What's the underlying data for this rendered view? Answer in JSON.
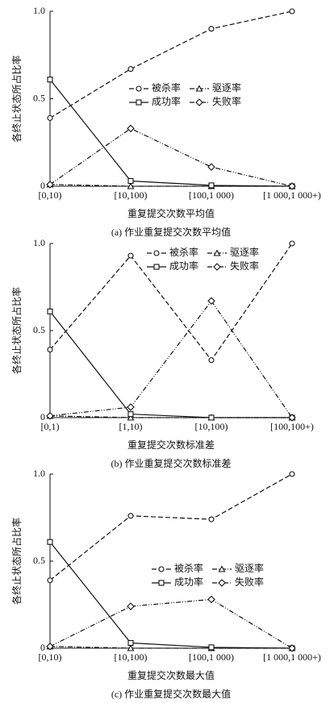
{
  "chart_data": [
    {
      "type": "line",
      "y_label": "各终止状态所占比率",
      "x_label": "重复提交次数平均值",
      "caption": "(a) 作业重复提交次数平均值",
      "categories": [
        "[0,10)",
        "[10,100)",
        "[100,1 000)",
        "[1 000,1 000+)"
      ],
      "ylim": [
        0,
        1
      ],
      "yticks": [
        0,
        0.5,
        {
          "value": 1,
          "label": "1.0"
        }
      ],
      "series": [
        {
          "name": "被杀率",
          "color": "#111111",
          "marker": "circle",
          "dash": "6 3",
          "values": [
            0.39,
            0.67,
            0.9,
            1.0
          ]
        },
        {
          "name": "驱逐率",
          "color": "#111111",
          "marker": "triangle",
          "dash": "6 2 1 2",
          "values": [
            0.01,
            0,
            0,
            0
          ]
        },
        {
          "name": "成功率",
          "color": "#111111",
          "marker": "square",
          "dash": "none",
          "values": [
            0.61,
            0.03,
            0.005,
            0
          ]
        },
        {
          "name": "失败率",
          "color": "#111111",
          "marker": "diamond",
          "dash": "6 2 1 2 1 2",
          "values": [
            0.01,
            0.33,
            0.11,
            0
          ]
        }
      ]
    },
    {
      "type": "line",
      "y_label": "各终止状态所占比率",
      "x_label": "重复提交次数标准差",
      "caption": "(b) 作业重复提交次数标准差",
      "categories": [
        "[0,1)",
        "[1,10)",
        "[10,100)",
        "[100,100+)"
      ],
      "ylim": [
        0,
        1
      ],
      "yticks": [
        0,
        0.5,
        {
          "value": 1,
          "label": "1.0"
        }
      ],
      "series": [
        {
          "name": "被杀率",
          "color": "#111111",
          "marker": "circle",
          "dash": "6 3",
          "values": [
            0.39,
            0.93,
            0.33,
            1.0
          ]
        },
        {
          "name": "驱逐率",
          "color": "#111111",
          "marker": "triangle",
          "dash": "6 2 1 2",
          "values": [
            0.01,
            0,
            0,
            0
          ]
        },
        {
          "name": "成功率",
          "color": "#111111",
          "marker": "square",
          "dash": "none",
          "values": [
            0.61,
            0.02,
            0,
            0
          ]
        },
        {
          "name": "失败率",
          "color": "#111111",
          "marker": "diamond",
          "dash": "6 2 1 2 1 2",
          "values": [
            0.01,
            0.06,
            0.67,
            0
          ]
        }
      ]
    },
    {
      "type": "line",
      "y_label": "各终止状态所占比率",
      "x_label": "重复提交次数最大值",
      "caption": "(c) 作业重复提交次数最大值",
      "categories": [
        "[0,10)",
        "[10,100)",
        "[100,1 000)",
        "[1 000,1 000+)"
      ],
      "ylim": [
        0,
        1
      ],
      "yticks": [
        0,
        0.5,
        {
          "value": 1,
          "label": "1.0"
        }
      ],
      "series": [
        {
          "name": "被杀率",
          "color": "#111111",
          "marker": "circle",
          "dash": "6 3",
          "values": [
            0.39,
            0.76,
            0.74,
            1.0
          ]
        },
        {
          "name": "驱逐率",
          "color": "#111111",
          "marker": "triangle",
          "dash": "6 2 1 2",
          "values": [
            0.01,
            0,
            0,
            0
          ]
        },
        {
          "name": "成功率",
          "color": "#111111",
          "marker": "square",
          "dash": "none",
          "values": [
            0.61,
            0.03,
            0.005,
            0
          ]
        },
        {
          "name": "失败率",
          "color": "#111111",
          "marker": "diamond",
          "dash": "6 2 1 2 1 2",
          "values": [
            0.01,
            0.24,
            0.28,
            0
          ]
        }
      ]
    }
  ]
}
